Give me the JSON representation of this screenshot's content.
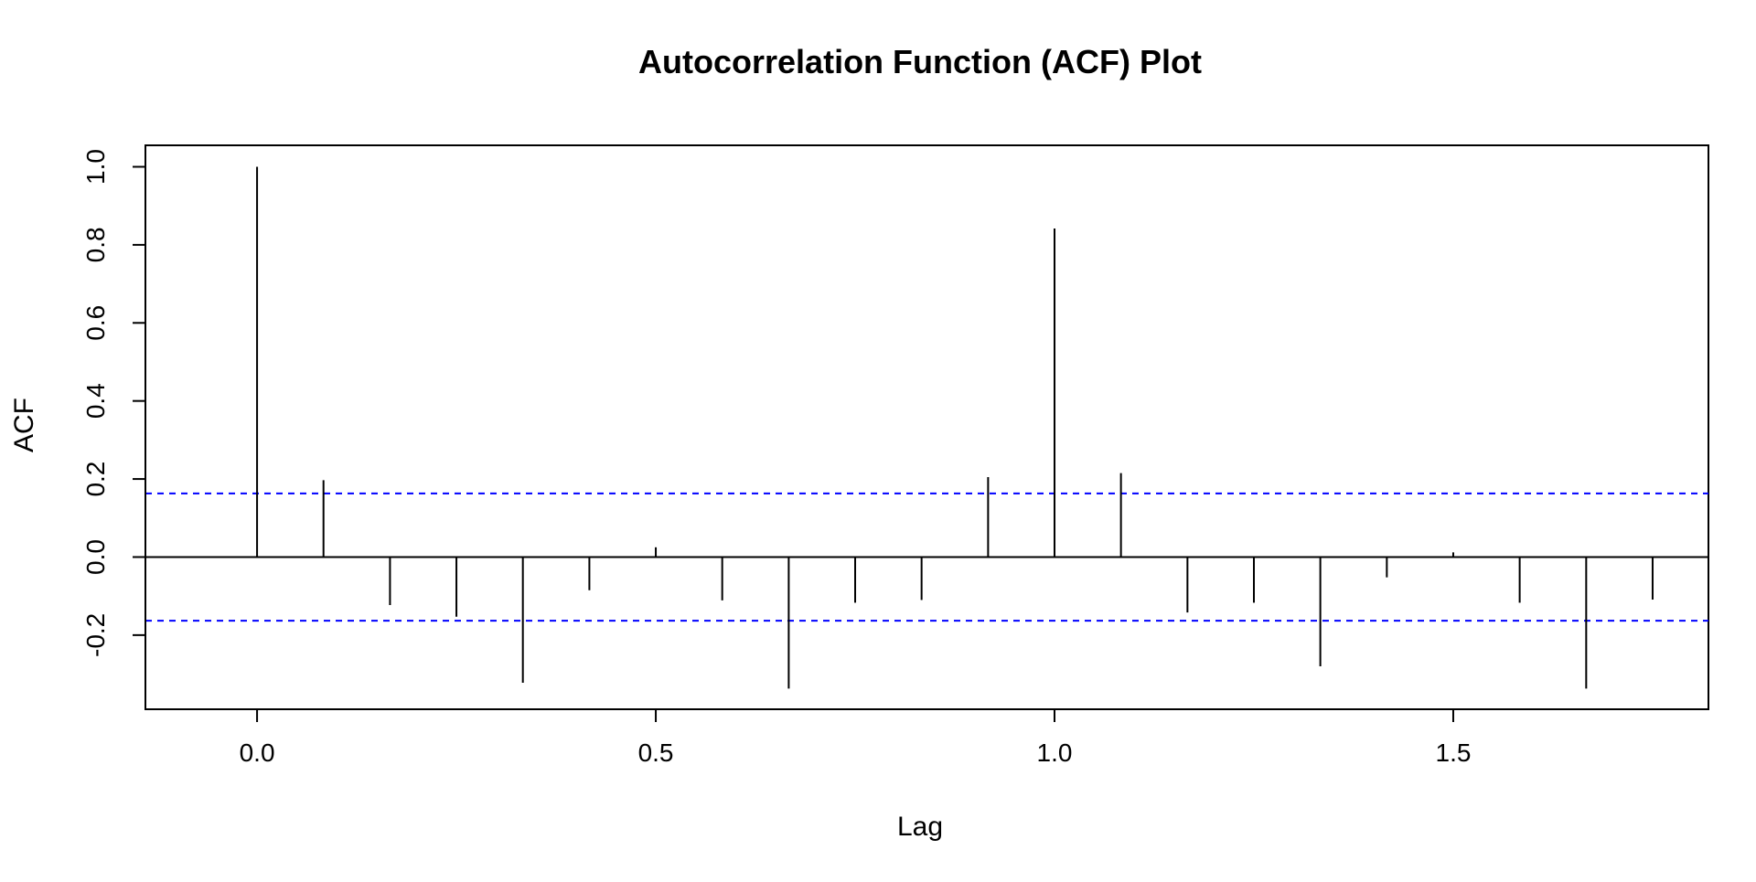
{
  "chart_data": {
    "type": "bar",
    "title": "Autocorrelation Function (ACF) Plot",
    "xlabel": "Lag",
    "ylabel": "ACF",
    "xlim": [
      -0.14,
      1.82
    ],
    "ylim": [
      -0.39,
      1.055
    ],
    "x_ticks": [
      0.0,
      0.5,
      1.0,
      1.5
    ],
    "x_tick_labels": [
      "0.0",
      "0.5",
      "1.0",
      "1.5"
    ],
    "y_ticks": [
      -0.2,
      0.0,
      0.2,
      0.4,
      0.6,
      0.8,
      1.0
    ],
    "y_tick_labels": [
      "-0.2",
      "0.0",
      "0.2",
      "0.4",
      "0.6",
      "0.8",
      "1.0"
    ],
    "confidence_limits": [
      0.163,
      -0.163
    ],
    "confidence_line_color": "#0000ff",
    "bar_color": "#000000",
    "grid": false,
    "legend": "none",
    "lags": [
      0.0,
      0.0833,
      0.1667,
      0.25,
      0.3333,
      0.4167,
      0.5,
      0.5833,
      0.6667,
      0.75,
      0.8333,
      0.9167,
      1.0,
      1.0833,
      1.1667,
      1.25,
      1.3333,
      1.4167,
      1.5,
      1.5833,
      1.6667,
      1.75
    ],
    "values": [
      1.0,
      0.197,
      -0.123,
      -0.153,
      -0.322,
      -0.085,
      0.025,
      -0.111,
      -0.337,
      -0.117,
      -0.11,
      0.205,
      0.842,
      0.215,
      -0.142,
      -0.117,
      -0.28,
      -0.052,
      0.012,
      -0.117,
      -0.337,
      -0.109
    ]
  }
}
